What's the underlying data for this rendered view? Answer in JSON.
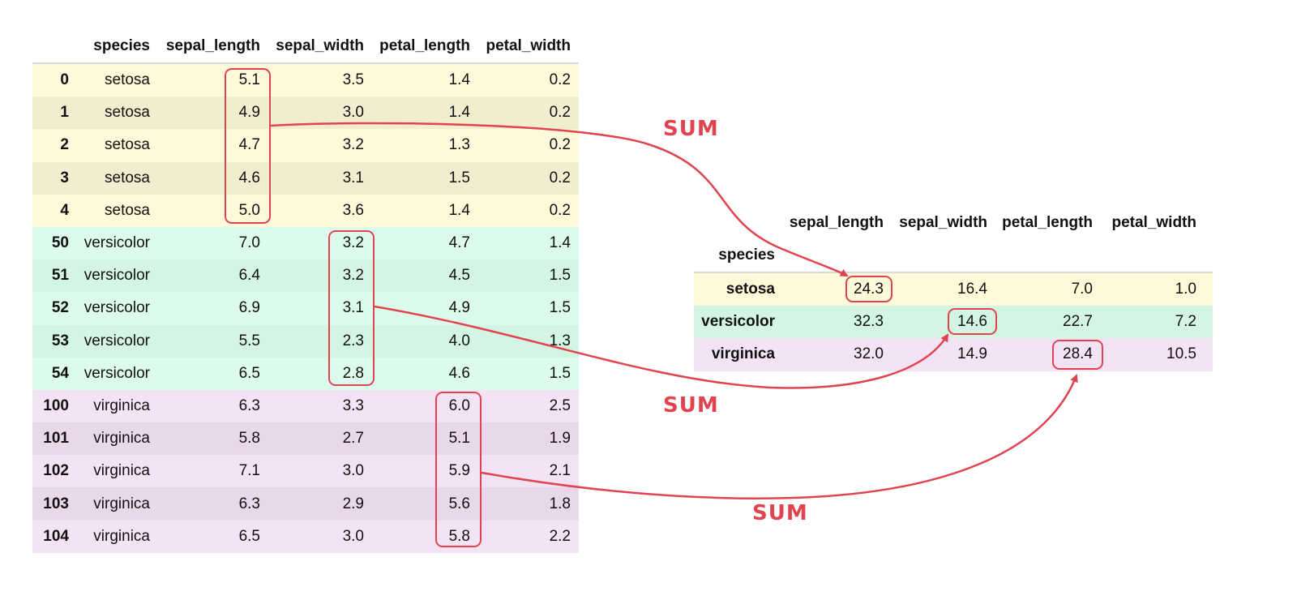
{
  "source_table": {
    "columns": [
      "species",
      "sepal_length",
      "sepal_width",
      "petal_length",
      "petal_width"
    ],
    "rows": [
      {
        "index": "0",
        "species": "setosa",
        "sepal_length": "5.1",
        "sepal_width": "3.5",
        "petal_length": "1.4",
        "petal_width": "0.2"
      },
      {
        "index": "1",
        "species": "setosa",
        "sepal_length": "4.9",
        "sepal_width": "3.0",
        "petal_length": "1.4",
        "petal_width": "0.2"
      },
      {
        "index": "2",
        "species": "setosa",
        "sepal_length": "4.7",
        "sepal_width": "3.2",
        "petal_length": "1.3",
        "petal_width": "0.2"
      },
      {
        "index": "3",
        "species": "setosa",
        "sepal_length": "4.6",
        "sepal_width": "3.1",
        "petal_length": "1.5",
        "petal_width": "0.2"
      },
      {
        "index": "4",
        "species": "setosa",
        "sepal_length": "5.0",
        "sepal_width": "3.6",
        "petal_length": "1.4",
        "petal_width": "0.2"
      },
      {
        "index": "50",
        "species": "versicolor",
        "sepal_length": "7.0",
        "sepal_width": "3.2",
        "petal_length": "4.7",
        "petal_width": "1.4"
      },
      {
        "index": "51",
        "species": "versicolor",
        "sepal_length": "6.4",
        "sepal_width": "3.2",
        "petal_length": "4.5",
        "petal_width": "1.5"
      },
      {
        "index": "52",
        "species": "versicolor",
        "sepal_length": "6.9",
        "sepal_width": "3.1",
        "petal_length": "4.9",
        "petal_width": "1.5"
      },
      {
        "index": "53",
        "species": "versicolor",
        "sepal_length": "5.5",
        "sepal_width": "2.3",
        "petal_length": "4.0",
        "petal_width": "1.3"
      },
      {
        "index": "54",
        "species": "versicolor",
        "sepal_length": "6.5",
        "sepal_width": "2.8",
        "petal_length": "4.6",
        "petal_width": "1.5"
      },
      {
        "index": "100",
        "species": "virginica",
        "sepal_length": "6.3",
        "sepal_width": "3.3",
        "petal_length": "6.0",
        "petal_width": "2.5"
      },
      {
        "index": "101",
        "species": "virginica",
        "sepal_length": "5.8",
        "sepal_width": "2.7",
        "petal_length": "5.1",
        "petal_width": "1.9"
      },
      {
        "index": "102",
        "species": "virginica",
        "sepal_length": "7.1",
        "sepal_width": "3.0",
        "petal_length": "5.9",
        "petal_width": "2.1"
      },
      {
        "index": "103",
        "species": "virginica",
        "sepal_length": "6.3",
        "sepal_width": "2.9",
        "petal_length": "5.6",
        "petal_width": "1.8"
      },
      {
        "index": "104",
        "species": "virginica",
        "sepal_length": "6.5",
        "sepal_width": "3.0",
        "petal_length": "5.8",
        "petal_width": "2.2"
      }
    ]
  },
  "result_table": {
    "index_name": "species",
    "columns": [
      "sepal_length",
      "sepal_width",
      "petal_length",
      "petal_width"
    ],
    "rows": [
      {
        "species": "setosa",
        "sepal_length": "24.3",
        "sepal_width": "16.4",
        "petal_length": "7.0",
        "petal_width": "1.0"
      },
      {
        "species": "versicolor",
        "sepal_length": "32.3",
        "sepal_width": "14.6",
        "petal_length": "22.7",
        "petal_width": "7.2"
      },
      {
        "species": "virginica",
        "sepal_length": "32.0",
        "sepal_width": "14.9",
        "petal_length": "28.4",
        "petal_width": "10.5"
      }
    ]
  },
  "annotations": {
    "sum_label_1": "SUM",
    "sum_label_2": "SUM",
    "sum_label_3": "SUM"
  },
  "colors": {
    "accent": "#e0444f",
    "setosa": "#fdf9d9",
    "versicolor": "#d4f4e4",
    "virginica": "#f3e3f4"
  }
}
